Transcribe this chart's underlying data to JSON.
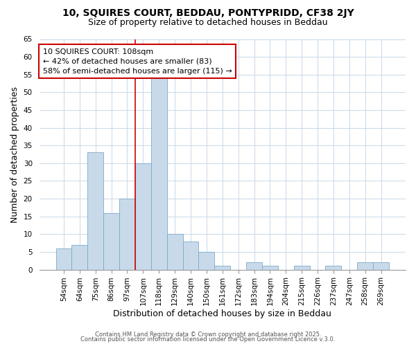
{
  "title1": "10, SQUIRES COURT, BEDDAU, PONTYPRIDD, CF38 2JY",
  "title2": "Size of property relative to detached houses in Beddau",
  "xlabel": "Distribution of detached houses by size in Beddau",
  "ylabel": "Number of detached properties",
  "categories": [
    "54sqm",
    "64sqm",
    "75sqm",
    "86sqm",
    "97sqm",
    "107sqm",
    "118sqm",
    "129sqm",
    "140sqm",
    "150sqm",
    "161sqm",
    "172sqm",
    "183sqm",
    "194sqm",
    "204sqm",
    "215sqm",
    "226sqm",
    "237sqm",
    "247sqm",
    "258sqm",
    "269sqm"
  ],
  "values": [
    6,
    7,
    33,
    16,
    20,
    30,
    54,
    10,
    8,
    5,
    1,
    0,
    2,
    1,
    0,
    1,
    0,
    1,
    0,
    2,
    2
  ],
  "bar_color": "#c8daea",
  "bar_edge_color": "#7aaac8",
  "vline_x_index": 5,
  "vline_color": "#cc0000",
  "annotation_text": "10 SQUIRES COURT: 108sqm\n← 42% of detached houses are smaller (83)\n58% of semi-detached houses are larger (115) →",
  "annotation_box_color": "white",
  "annotation_box_edge_color": "#cc0000",
  "ylim": [
    0,
    65
  ],
  "yticks": [
    0,
    5,
    10,
    15,
    20,
    25,
    30,
    35,
    40,
    45,
    50,
    55,
    60,
    65
  ],
  "grid_color": "#c8d8e8",
  "bg_color": "#ffffff",
  "footer1": "Contains HM Land Registry data © Crown copyright and database right 2025.",
  "footer2": "Contains public sector information licensed under the Open Government Licence v.3.0.",
  "title_fontsize": 10,
  "subtitle_fontsize": 9,
  "axis_label_fontsize": 9,
  "tick_fontsize": 7.5,
  "annotation_fontsize": 8,
  "footer_fontsize": 6
}
